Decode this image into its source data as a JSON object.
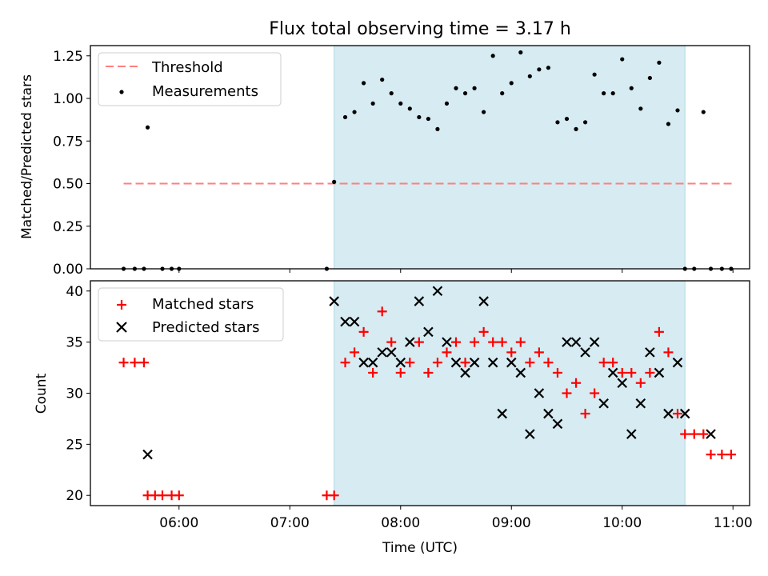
{
  "title": "Flux total observing time = 3.17 h",
  "colors": {
    "threshold": "#ff7f7f",
    "measurement": "#000000",
    "matched": "#ff0000",
    "predicted": "#000000",
    "span_fill": "#add8e6"
  },
  "chart_data": [
    {
      "type": "scatter",
      "ylabel": "Matched/Predicted stars",
      "xlim": [
        "05:12",
        "11:09"
      ],
      "ylim": [
        0,
        1.31
      ],
      "yticks": [
        "0.00",
        "0.25",
        "0.50",
        "0.75",
        "1.00",
        "1.25"
      ],
      "ytick_values": [
        0,
        0.25,
        0.5,
        0.75,
        1.0,
        1.25
      ],
      "highlight_span": [
        "07:24",
        "10:34"
      ],
      "legend": {
        "placement": "top-left",
        "entries": [
          "Threshold",
          "Measurements"
        ]
      },
      "series": [
        {
          "name": "Threshold",
          "kind": "dashed-line",
          "x": [
            "05:30",
            "11:00"
          ],
          "values": [
            0.5,
            0.5
          ]
        },
        {
          "name": "Measurements",
          "kind": "dots",
          "x": [
            "05:30",
            "05:36",
            "05:41",
            "05:43",
            "05:51",
            "05:56",
            "06:00",
            "07:20",
            "07:24",
            "07:30",
            "07:35",
            "07:40",
            "07:45",
            "07:50",
            "07:55",
            "08:00",
            "08:05",
            "08:10",
            "08:15",
            "08:20",
            "08:25",
            "08:30",
            "08:35",
            "08:40",
            "08:45",
            "08:50",
            "08:55",
            "09:00",
            "09:05",
            "09:10",
            "09:15",
            "09:20",
            "09:25",
            "09:30",
            "09:35",
            "09:40",
            "09:45",
            "09:50",
            "09:55",
            "10:00",
            "10:05",
            "10:10",
            "10:15",
            "10:20",
            "10:25",
            "10:30",
            "10:34",
            "10:39",
            "10:44",
            "10:48",
            "10:54",
            "10:59"
          ],
          "values": [
            0.0,
            0.0,
            0.0,
            0.83,
            0.0,
            0.0,
            0.0,
            0.0,
            0.51,
            0.89,
            0.92,
            1.09,
            0.97,
            1.11,
            1.03,
            0.97,
            0.94,
            0.89,
            0.88,
            0.82,
            0.97,
            1.06,
            1.03,
            1.06,
            0.92,
            1.25,
            1.03,
            1.09,
            1.27,
            1.13,
            1.17,
            1.18,
            0.86,
            0.88,
            0.82,
            0.86,
            1.14,
            1.03,
            1.03,
            1.23,
            1.06,
            0.94,
            1.12,
            1.21,
            0.85,
            0.93,
            0.0,
            0.0,
            0.92,
            0.0,
            0.0,
            0.0
          ]
        }
      ]
    },
    {
      "type": "scatter",
      "xlabel": "Time (UTC)",
      "ylabel": "Count",
      "xlim": [
        "05:12",
        "11:09"
      ],
      "ylim": [
        19,
        41
      ],
      "yticks": [
        "20",
        "25",
        "30",
        "35",
        "40"
      ],
      "ytick_values": [
        20,
        25,
        30,
        35,
        40
      ],
      "xticks": [
        "06:00",
        "07:00",
        "08:00",
        "09:00",
        "10:00",
        "11:00"
      ],
      "highlight_span": [
        "07:24",
        "10:34"
      ],
      "legend": {
        "placement": "top-left",
        "entries": [
          "Matched stars",
          "Predicted stars"
        ]
      },
      "series": [
        {
          "name": "Matched stars",
          "kind": "plus",
          "x": [
            "05:30",
            "05:36",
            "05:41",
            "05:43",
            "05:47",
            "05:51",
            "05:56",
            "06:00",
            "07:20",
            "07:24",
            "07:30",
            "07:35",
            "07:40",
            "07:45",
            "07:50",
            "07:55",
            "08:00",
            "08:05",
            "08:10",
            "08:15",
            "08:20",
            "08:25",
            "08:30",
            "08:35",
            "08:40",
            "08:45",
            "08:50",
            "08:55",
            "09:00",
            "09:05",
            "09:10",
            "09:15",
            "09:20",
            "09:25",
            "09:30",
            "09:35",
            "09:40",
            "09:45",
            "09:50",
            "09:55",
            "10:00",
            "10:05",
            "10:10",
            "10:15",
            "10:20",
            "10:25",
            "10:30",
            "10:34",
            "10:39",
            "10:44",
            "10:48",
            "10:54",
            "10:59"
          ],
          "values": [
            33,
            33,
            33,
            20,
            20,
            20,
            20,
            20,
            20,
            20,
            33,
            34,
            36,
            32,
            38,
            35,
            32,
            33,
            35,
            32,
            33,
            34,
            35,
            33,
            35,
            36,
            35,
            35,
            34,
            35,
            33,
            34,
            33,
            32,
            30,
            31,
            28,
            30,
            33,
            33,
            32,
            32,
            31,
            32,
            36,
            34,
            28,
            26,
            26,
            26,
            24,
            24,
            24
          ]
        },
        {
          "name": "Predicted stars",
          "kind": "cross",
          "x": [
            "05:43",
            "07:24",
            "07:30",
            "07:35",
            "07:40",
            "07:45",
            "07:50",
            "07:55",
            "08:00",
            "08:05",
            "08:10",
            "08:15",
            "08:20",
            "08:25",
            "08:30",
            "08:35",
            "08:40",
            "08:45",
            "08:50",
            "08:55",
            "09:00",
            "09:05",
            "09:10",
            "09:15",
            "09:20",
            "09:25",
            "09:30",
            "09:35",
            "09:40",
            "09:45",
            "09:50",
            "09:55",
            "10:00",
            "10:05",
            "10:10",
            "10:15",
            "10:20",
            "10:25",
            "10:30",
            "10:34",
            "10:48"
          ],
          "values": [
            24,
            39,
            37,
            37,
            33,
            33,
            34,
            34,
            33,
            35,
            39,
            36,
            40,
            35,
            33,
            32,
            33,
            39,
            33,
            28,
            33,
            32,
            26,
            30,
            28,
            27,
            35,
            35,
            34,
            35,
            29,
            32,
            31,
            26,
            29,
            34,
            32,
            28,
            33,
            28,
            26
          ]
        }
      ]
    }
  ]
}
